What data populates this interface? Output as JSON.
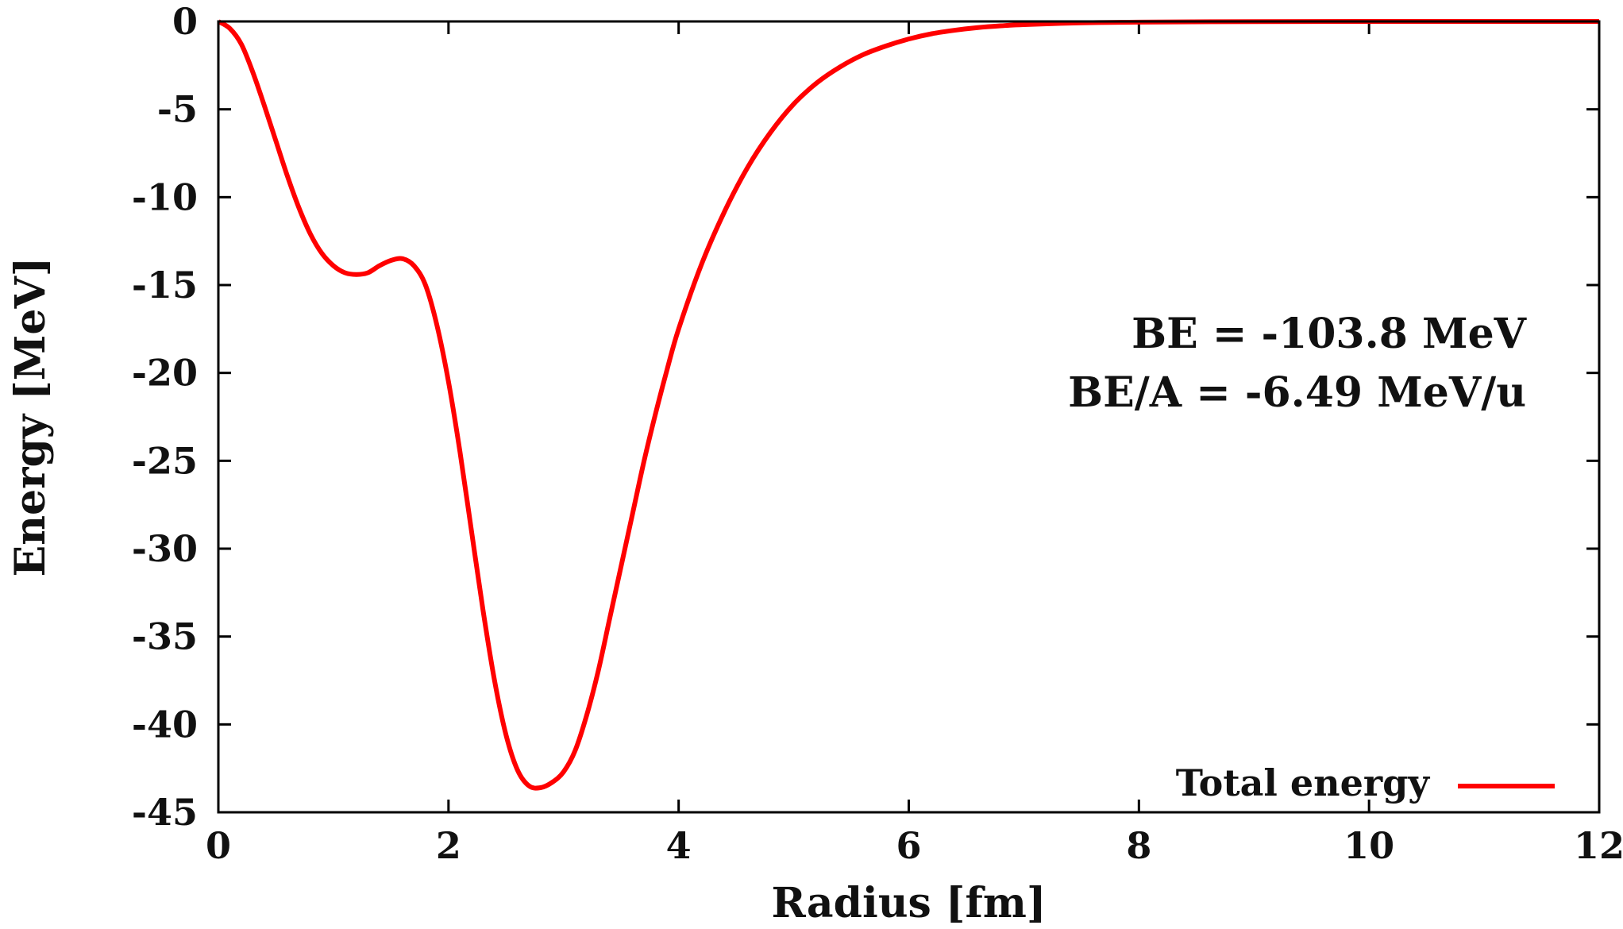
{
  "chart_data": {
    "type": "line",
    "xlabel": "Radius [fm]",
    "ylabel": "Energy [MeV]",
    "xlim": [
      0,
      12
    ],
    "ylim": [
      -45,
      0
    ],
    "xticks": [
      0,
      2,
      4,
      6,
      8,
      10,
      12
    ],
    "yticks": [
      0,
      -5,
      -10,
      -15,
      -20,
      -25,
      -30,
      -35,
      -40,
      -45
    ],
    "grid": false,
    "legend_position": "bottom-right",
    "annotations": [
      "BE = -103.8 MeV",
      "BE/A = -6.49 MeV/u"
    ],
    "series": [
      {
        "name": "Total energy",
        "color": "#ff0000",
        "x": [
          0,
          0.1,
          0.2,
          0.3,
          0.4,
          0.5,
          0.6,
          0.7,
          0.8,
          0.9,
          1.0,
          1.1,
          1.2,
          1.3,
          1.4,
          1.5,
          1.6,
          1.7,
          1.8,
          1.9,
          2.0,
          2.1,
          2.2,
          2.3,
          2.4,
          2.5,
          2.6,
          2.7,
          2.8,
          2.9,
          3.0,
          3.1,
          3.2,
          3.3,
          3.4,
          3.5,
          3.6,
          3.7,
          3.8,
          3.9,
          4.0,
          4.2,
          4.4,
          4.6,
          4.8,
          5.0,
          5.2,
          5.4,
          5.6,
          5.8,
          6.0,
          6.2,
          6.4,
          6.6,
          6.8,
          7.0,
          7.5,
          8.0,
          9.0,
          10.0,
          11.0,
          12.0
        ],
        "y": [
          0,
          -0.4,
          -1.3,
          -2.9,
          -4.8,
          -6.8,
          -8.8,
          -10.6,
          -12.1,
          -13.2,
          -13.9,
          -14.3,
          -14.4,
          -14.3,
          -13.9,
          -13.6,
          -13.5,
          -13.9,
          -15.0,
          -17.3,
          -20.5,
          -24.5,
          -29.0,
          -33.5,
          -37.5,
          -40.6,
          -42.6,
          -43.5,
          -43.6,
          -43.3,
          -42.7,
          -41.5,
          -39.5,
          -37.0,
          -34.0,
          -31.0,
          -28.0,
          -25.0,
          -22.3,
          -19.8,
          -17.5,
          -13.8,
          -10.8,
          -8.3,
          -6.3,
          -4.7,
          -3.5,
          -2.6,
          -1.9,
          -1.4,
          -1.0,
          -0.7,
          -0.5,
          -0.35,
          -0.25,
          -0.18,
          -0.08,
          -0.04,
          -0.01,
          0,
          0,
          0
        ]
      }
    ]
  }
}
